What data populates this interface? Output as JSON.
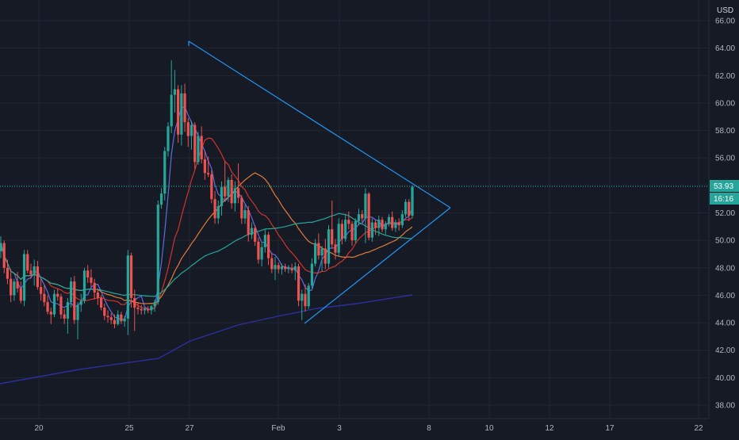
{
  "chart_data": {
    "type": "candlestick",
    "currency_label": "USD",
    "last_price_label": "53.93",
    "countdown_label": "16:16",
    "y_ticks": [
      "66.00",
      "64.00",
      "62.00",
      "60.00",
      "58.00",
      "56.00",
      "54.00",
      "52.00",
      "50.00",
      "48.00",
      "46.00",
      "44.00",
      "42.00",
      "40.00",
      "38.00"
    ],
    "y_tick_values": [
      66,
      64,
      62,
      60,
      58,
      56,
      54,
      52,
      50,
      48,
      46,
      44,
      42,
      40,
      38
    ],
    "x_ticks": [
      "20",
      "25",
      "27",
      "Feb",
      "3",
      "8",
      "10",
      "12",
      "17",
      "22"
    ],
    "ylim": [
      37.5,
      67
    ],
    "last_price": 53.93,
    "colors": {
      "background": "#161a25",
      "grid": "#232632",
      "up": "#26a69a",
      "down": "#ef5350",
      "ma_fast": "#5b6ee1",
      "ma_red": "#d0342c",
      "ma_orange": "#e07b39",
      "ma_teal": "#26a69a",
      "ma_navy": "#2c2f9e",
      "triangle": "#2196f3",
      "price_line": "#26a69a"
    },
    "candles": [
      [
        49.2,
        50.3,
        48.7,
        49.8
      ],
      [
        49.8,
        50.0,
        47.6,
        48.0
      ],
      [
        48.0,
        48.6,
        46.8,
        47.2
      ],
      [
        47.2,
        47.9,
        45.5,
        46.0
      ],
      [
        46.0,
        47.2,
        45.6,
        47.0
      ],
      [
        47.0,
        47.7,
        46.2,
        46.5
      ],
      [
        46.5,
        47.0,
        45.4,
        45.6
      ],
      [
        45.6,
        49.3,
        45.2,
        49.0
      ],
      [
        49.0,
        49.3,
        47.6,
        47.8
      ],
      [
        47.8,
        48.3,
        47.2,
        47.5
      ],
      [
        47.5,
        48.6,
        46.7,
        48.1
      ],
      [
        48.1,
        48.5,
        46.4,
        46.6
      ],
      [
        46.6,
        47.2,
        45.6,
        46.1
      ],
      [
        46.1,
        46.8,
        45.2,
        45.5
      ],
      [
        45.5,
        46.0,
        44.6,
        44.8
      ],
      [
        44.8,
        45.1,
        43.9,
        44.6
      ],
      [
        44.6,
        46.4,
        44.4,
        46.1
      ],
      [
        46.1,
        46.5,
        45.6,
        45.9
      ],
      [
        45.9,
        46.1,
        44.3,
        44.6
      ],
      [
        44.6,
        45.0,
        43.9,
        44.3
      ],
      [
        44.3,
        45.8,
        43.2,
        45.5
      ],
      [
        45.5,
        47.3,
        45.1,
        47.0
      ],
      [
        47.0,
        47.4,
        43.9,
        44.2
      ],
      [
        44.2,
        45.5,
        42.8,
        45.3
      ],
      [
        45.3,
        46.1,
        44.8,
        45.6
      ],
      [
        45.6,
        48.0,
        45.4,
        47.8
      ],
      [
        47.8,
        48.2,
        46.9,
        47.3
      ],
      [
        47.3,
        47.9,
        46.6,
        46.9
      ],
      [
        46.9,
        47.2,
        45.7,
        46.2
      ],
      [
        46.2,
        46.5,
        45.3,
        45.8
      ],
      [
        45.8,
        46.0,
        44.9,
        45.1
      ],
      [
        45.1,
        45.4,
        44.2,
        44.5
      ],
      [
        44.5,
        44.9,
        44.0,
        44.4
      ],
      [
        44.4,
        44.7,
        43.9,
        44.2
      ],
      [
        44.2,
        44.6,
        43.6,
        43.9
      ],
      [
        43.9,
        44.9,
        43.8,
        44.6
      ],
      [
        44.6,
        44.8,
        43.9,
        44.1
      ],
      [
        44.1,
        44.5,
        43.7,
        44.3
      ],
      [
        44.3,
        49.3,
        43.1,
        48.9
      ],
      [
        48.9,
        49.1,
        45.1,
        45.8
      ],
      [
        45.8,
        46.4,
        43.4,
        45.1
      ],
      [
        45.1,
        45.5,
        44.6,
        45.0
      ],
      [
        45.0,
        45.3,
        44.6,
        44.9
      ],
      [
        44.9,
        45.1,
        44.6,
        45.0
      ],
      [
        45.0,
        45.2,
        44.7,
        44.9
      ],
      [
        44.9,
        45.3,
        44.6,
        45.2
      ],
      [
        45.2,
        45.7,
        44.8,
        45.5
      ],
      [
        45.5,
        52.9,
        45.3,
        52.6
      ],
      [
        52.6,
        53.8,
        52.3,
        53.4
      ],
      [
        53.4,
        56.8,
        52.9,
        56.5
      ],
      [
        56.5,
        58.6,
        56.1,
        58.3
      ],
      [
        58.3,
        63.1,
        57.8,
        60.6
      ],
      [
        60.6,
        62.4,
        59.3,
        61.0
      ],
      [
        61.0,
        61.3,
        57.1,
        57.7
      ],
      [
        57.7,
        61.3,
        56.9,
        60.7
      ],
      [
        60.7,
        61.4,
        57.9,
        58.6
      ],
      [
        58.6,
        58.9,
        56.8,
        57.6
      ],
      [
        57.6,
        58.7,
        56.6,
        58.4
      ],
      [
        58.4,
        58.6,
        55.2,
        55.7
      ],
      [
        55.7,
        57.9,
        55.5,
        57.6
      ],
      [
        57.6,
        58.3,
        55.6,
        55.9
      ],
      [
        55.9,
        56.5,
        54.4,
        54.9
      ],
      [
        54.9,
        56.1,
        54.6,
        54.8
      ],
      [
        54.8,
        55.1,
        52.7,
        53.0
      ],
      [
        53.0,
        53.6,
        51.2,
        51.6
      ],
      [
        51.6,
        52.9,
        51.2,
        52.5
      ],
      [
        52.5,
        54.3,
        51.8,
        53.9
      ],
      [
        53.9,
        55.8,
        52.9,
        53.2
      ],
      [
        53.2,
        54.6,
        52.8,
        54.4
      ],
      [
        54.4,
        54.8,
        52.3,
        52.7
      ],
      [
        52.7,
        54.3,
        52.1,
        53.8
      ],
      [
        53.8,
        55.6,
        52.7,
        53.1
      ],
      [
        53.1,
        53.3,
        51.2,
        51.6
      ],
      [
        51.6,
        52.6,
        51.2,
        52.2
      ],
      [
        52.2,
        52.5,
        49.9,
        50.4
      ],
      [
        50.4,
        51.3,
        50.1,
        50.9
      ],
      [
        50.9,
        51.1,
        49.6,
        49.9
      ],
      [
        49.9,
        50.2,
        48.3,
        48.6
      ],
      [
        48.6,
        49.8,
        48.1,
        49.5
      ],
      [
        49.5,
        50.8,
        49.1,
        50.4
      ],
      [
        50.4,
        50.6,
        48.2,
        48.7
      ],
      [
        48.7,
        49.1,
        47.6,
        47.9
      ],
      [
        47.9,
        48.8,
        47.1,
        48.2
      ],
      [
        48.2,
        48.4,
        47.6,
        47.9
      ],
      [
        47.9,
        48.3,
        47.5,
        48.1
      ],
      [
        48.1,
        48.3,
        47.7,
        47.9
      ],
      [
        47.9,
        48.2,
        47.6,
        48.0
      ],
      [
        48.0,
        48.3,
        47.6,
        47.8
      ],
      [
        47.8,
        48.4,
        47.1,
        48.1
      ],
      [
        48.1,
        48.3,
        45.2,
        45.6
      ],
      [
        45.6,
        46.4,
        44.2,
        46.1
      ],
      [
        46.1,
        46.8,
        44.8,
        45.2
      ],
      [
        45.2,
        46.9,
        45.0,
        46.7
      ],
      [
        46.7,
        48.7,
        46.5,
        48.3
      ],
      [
        48.3,
        50.1,
        48.1,
        49.8
      ],
      [
        49.8,
        50.5,
        48.6,
        48.9
      ],
      [
        48.9,
        49.6,
        47.7,
        49.4
      ],
      [
        49.4,
        50.1,
        47.9,
        48.3
      ],
      [
        48.3,
        51.1,
        48.0,
        50.8
      ],
      [
        50.8,
        52.9,
        49.4,
        49.7
      ],
      [
        49.7,
        50.1,
        48.6,
        49.1
      ],
      [
        49.1,
        51.6,
        48.8,
        51.2
      ],
      [
        51.2,
        51.5,
        49.7,
        50.1
      ],
      [
        50.1,
        51.9,
        49.9,
        51.5
      ],
      [
        51.5,
        52.1,
        50.8,
        51.2
      ],
      [
        51.2,
        51.4,
        49.6,
        50.0
      ],
      [
        50.0,
        51.6,
        49.8,
        51.4
      ],
      [
        51.4,
        52.3,
        51.1,
        51.9
      ],
      [
        51.9,
        52.2,
        51.3,
        51.6
      ],
      [
        51.6,
        53.8,
        49.8,
        53.4
      ],
      [
        53.4,
        53.5,
        50.0,
        50.2
      ],
      [
        50.2,
        51.6,
        49.9,
        51.3
      ],
      [
        51.3,
        51.5,
        50.4,
        50.9
      ],
      [
        50.9,
        51.8,
        50.3,
        51.5
      ],
      [
        51.5,
        51.7,
        50.6,
        50.8
      ],
      [
        50.8,
        51.4,
        50.4,
        51.2
      ],
      [
        51.2,
        51.9,
        51.0,
        51.7
      ],
      [
        51.7,
        52.1,
        50.7,
        50.9
      ],
      [
        50.9,
        51.5,
        50.6,
        51.3
      ],
      [
        51.3,
        51.6,
        50.7,
        51.1
      ],
      [
        51.1,
        52.2,
        50.9,
        51.9
      ],
      [
        51.9,
        53.0,
        51.7,
        52.8
      ],
      [
        52.8,
        53.0,
        51.4,
        51.8
      ],
      [
        51.8,
        54.0,
        51.6,
        53.9
      ]
    ]
  }
}
